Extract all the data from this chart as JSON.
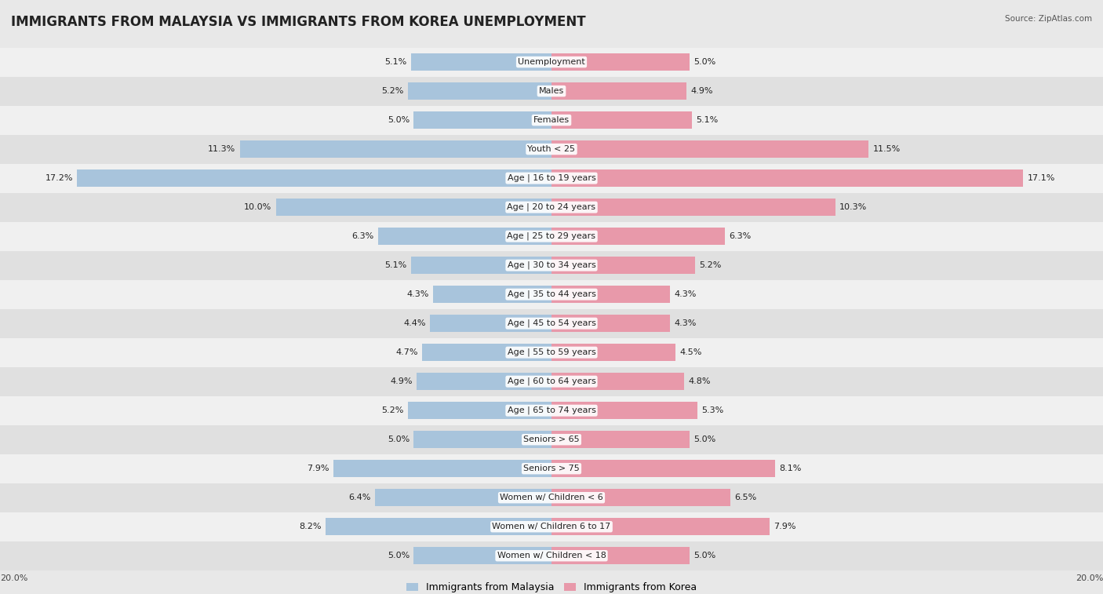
{
  "title": "IMMIGRANTS FROM MALAYSIA VS IMMIGRANTS FROM KOREA UNEMPLOYMENT",
  "source": "Source: ZipAtlas.com",
  "categories": [
    "Unemployment",
    "Males",
    "Females",
    "Youth < 25",
    "Age | 16 to 19 years",
    "Age | 20 to 24 years",
    "Age | 25 to 29 years",
    "Age | 30 to 34 years",
    "Age | 35 to 44 years",
    "Age | 45 to 54 years",
    "Age | 55 to 59 years",
    "Age | 60 to 64 years",
    "Age | 65 to 74 years",
    "Seniors > 65",
    "Seniors > 75",
    "Women w/ Children < 6",
    "Women w/ Children 6 to 17",
    "Women w/ Children < 18"
  ],
  "malaysia_values": [
    5.1,
    5.2,
    5.0,
    11.3,
    17.2,
    10.0,
    6.3,
    5.1,
    4.3,
    4.4,
    4.7,
    4.9,
    5.2,
    5.0,
    7.9,
    6.4,
    8.2,
    5.0
  ],
  "korea_values": [
    5.0,
    4.9,
    5.1,
    11.5,
    17.1,
    10.3,
    6.3,
    5.2,
    4.3,
    4.3,
    4.5,
    4.8,
    5.3,
    5.0,
    8.1,
    6.5,
    7.9,
    5.0
  ],
  "malaysia_color": "#a8c4dc",
  "korea_color": "#e899aa",
  "malaysia_label": "Immigrants from Malaysia",
  "korea_label": "Immigrants from Korea",
  "axis_max": 20.0,
  "background_color": "#e8e8e8",
  "row_light": "#f0f0f0",
  "row_dark": "#e0e0e0",
  "title_fontsize": 12,
  "label_fontsize": 8,
  "value_fontsize": 8
}
